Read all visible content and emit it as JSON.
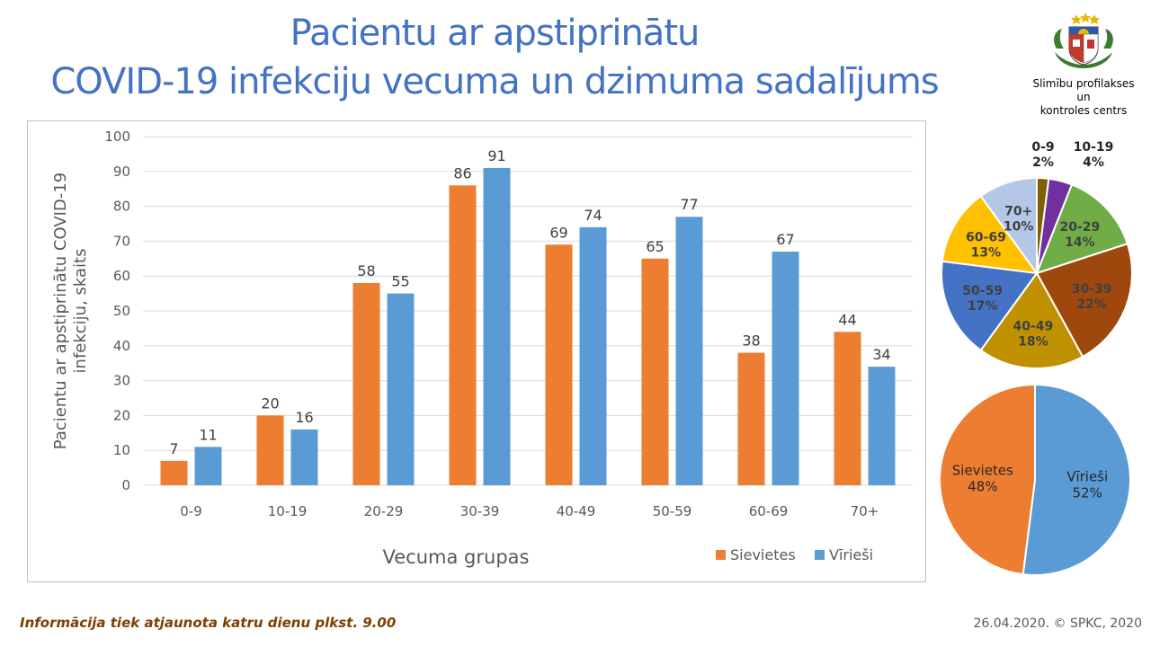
{
  "header": {
    "title_line1": "Pacientu ar apstiprinātu",
    "title_line2": "COVID-19 infekciju vecuma un dzimuma sadalījums"
  },
  "logo": {
    "org_line1": "Slimību profilakses un",
    "org_line2": "kontroles centrs"
  },
  "chart_data": [
    {
      "type": "bar",
      "categories": [
        "0-9",
        "10-19",
        "20-29",
        "30-39",
        "40-49",
        "50-59",
        "60-69",
        "70+"
      ],
      "series": [
        {
          "name": "Sievietes",
          "color": "#ed7d31",
          "values": [
            7,
            20,
            58,
            86,
            69,
            65,
            38,
            44
          ]
        },
        {
          "name": "Vīrieši",
          "color": "#5b9bd5",
          "values": [
            11,
            16,
            55,
            91,
            74,
            77,
            67,
            34
          ]
        }
      ],
      "xlabel": "Vecuma grupas",
      "ylabel_line1": "Pacientu ar apstiprinātu COVID-19",
      "ylabel_line2": "infekciju, skaits",
      "ylim": [
        0,
        100
      ],
      "yticks": [
        0,
        10,
        20,
        30,
        40,
        50,
        60,
        70,
        80,
        90,
        100
      ],
      "grid": true,
      "legend": "bottom-right"
    },
    {
      "type": "pie",
      "labels": [
        "0-9",
        "10-19",
        "20-29",
        "30-39",
        "40-49",
        "50-59",
        "60-69",
        "70+"
      ],
      "values": [
        2,
        4,
        14,
        22,
        18,
        17,
        13,
        10
      ],
      "value_labels": [
        "2%",
        "4%",
        "14%",
        "22%",
        "18%",
        "17%",
        "13%",
        "10%"
      ],
      "colors": [
        "#7f6000",
        "#7030a0",
        "#70ad47",
        "#9e480e",
        "#bf9000",
        "#4472c4",
        "#ffc000",
        "#b4c7e7"
      ]
    },
    {
      "type": "pie",
      "labels": [
        "Vīrieši",
        "Sievietes"
      ],
      "values": [
        52,
        48
      ],
      "value_labels": [
        "52%",
        "48%"
      ],
      "colors": [
        "#5b9bd5",
        "#ed7d31"
      ]
    }
  ],
  "footer": {
    "update_note": "Informācija tiek atjaunota katru dienu plkst. 9.00",
    "date_copyright": "26.04.2020. © SPKC, 2020"
  }
}
